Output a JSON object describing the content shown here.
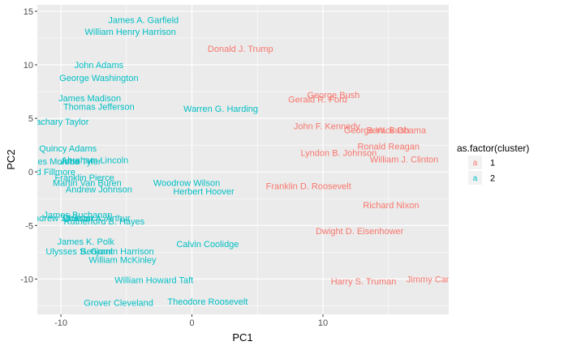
{
  "chart_data": {
    "type": "scatter",
    "title": "",
    "xlabel": "PC1",
    "ylabel": "PC2",
    "xlim": [
      -11.8,
      19.6
    ],
    "ylim": [
      -13.3,
      15.6
    ],
    "xticks": [
      -10,
      0,
      10
    ],
    "yticks": [
      -10,
      -5,
      0,
      5,
      10,
      15
    ],
    "tick_labels_x": [
      "-10",
      "0",
      "10"
    ],
    "tick_labels_y": [
      "-10",
      "-5",
      "0",
      "5",
      "10",
      "15"
    ],
    "grid": true,
    "legend": {
      "title": "as.factor(cluster)",
      "placement": "right",
      "entries": [
        {
          "glyph": "a",
          "label": "1",
          "color": "#F8766D"
        },
        {
          "glyph": "a",
          "label": "2",
          "color": "#00BFC4"
        }
      ]
    },
    "colors": {
      "cluster1": "#F8766D",
      "cluster2": "#00BFC4",
      "panel": "#EBEBEB",
      "grid": "#FFFFFF"
    },
    "series": [
      {
        "name": "1",
        "points": [
          {
            "label": "Donald J. Trump",
            "x": 3.7,
            "y": 11.5
          },
          {
            "label": "George Bush",
            "x": 10.8,
            "y": 7.2
          },
          {
            "label": "Gerald R. Ford",
            "x": 9.6,
            "y": 6.8
          },
          {
            "label": "John F. Kennedy",
            "x": 10.3,
            "y": 4.3
          },
          {
            "label": "George W. Bush",
            "x": 14.1,
            "y": 3.9
          },
          {
            "label": "Barack Obama",
            "x": 15.6,
            "y": 3.9
          },
          {
            "label": "Ronald Reagan",
            "x": 15.0,
            "y": 2.4
          },
          {
            "label": "Lyndon B. Johnson",
            "x": 11.2,
            "y": 1.8
          },
          {
            "label": "William J. Clinton",
            "x": 16.2,
            "y": 1.2
          },
          {
            "label": "Franklin D. Roosevelt",
            "x": 8.9,
            "y": -1.3
          },
          {
            "label": "Richard Nixon",
            "x": 15.2,
            "y": -3.1
          },
          {
            "label": "Dwight D. Eisenhower",
            "x": 12.8,
            "y": -5.5
          },
          {
            "label": "Harry S. Truman",
            "x": 13.1,
            "y": -10.2
          },
          {
            "label": "Jimmy Carter",
            "x": 18.4,
            "y": -10.0
          }
        ]
      },
      {
        "name": "2",
        "points": [
          {
            "label": "James A. Garfield",
            "x": -3.7,
            "y": 14.2
          },
          {
            "label": "William Henry Harrison",
            "x": -4.7,
            "y": 13.1
          },
          {
            "label": "John Adams",
            "x": -7.1,
            "y": 10.0
          },
          {
            "label": "George Washington",
            "x": -7.1,
            "y": 8.8
          },
          {
            "label": "James Madison",
            "x": -7.8,
            "y": 6.9
          },
          {
            "label": "Thomas Jefferson",
            "x": -7.1,
            "y": 6.1
          },
          {
            "label": "Warren G. Harding",
            "x": 2.2,
            "y": 5.9
          },
          {
            "label": "Zachary Taylor",
            "x": -10.1,
            "y": 4.7
          },
          {
            "label": "John Quincy Adams",
            "x": -10.3,
            "y": 2.2
          },
          {
            "label": "Abraham Lincoln",
            "x": -7.4,
            "y": 1.1
          },
          {
            "label": "James Monroe",
            "x": -10.8,
            "y": 1.0
          },
          {
            "label": "John Tyler",
            "x": -8.5,
            "y": 1.0
          },
          {
            "label": "Millard Fillmore",
            "x": -11.2,
            "y": 0.0
          },
          {
            "label": "Franklin Pierce",
            "x": -8.2,
            "y": -0.5
          },
          {
            "label": "Martin Van Buren",
            "x": -8.0,
            "y": -1.0
          },
          {
            "label": "Woodrow Wilson",
            "x": -0.4,
            "y": -1.0
          },
          {
            "label": "Andrew Johnson",
            "x": -7.1,
            "y": -1.6
          },
          {
            "label": "Herbert Hoover",
            "x": 0.9,
            "y": -1.8
          },
          {
            "label": "James Buchanan",
            "x": -8.7,
            "y": -4.0
          },
          {
            "label": "Andrew Jackson",
            "x": -10.0,
            "y": -4.3
          },
          {
            "label": "Chester A. Arthur",
            "x": -7.3,
            "y": -4.3
          },
          {
            "label": "Rutherford B. Hayes",
            "x": -6.7,
            "y": -4.6
          },
          {
            "label": "James K. Polk",
            "x": -8.1,
            "y": -6.5
          },
          {
            "label": "Calvin Coolidge",
            "x": 1.2,
            "y": -6.7
          },
          {
            "label": "Ulysses S. Grant",
            "x": -8.6,
            "y": -7.4
          },
          {
            "label": "Benjamin Harrison",
            "x": -5.7,
            "y": -7.4
          },
          {
            "label": "William McKinley",
            "x": -5.3,
            "y": -8.2
          },
          {
            "label": "William Howard Taft",
            "x": -2.9,
            "y": -10.1
          },
          {
            "label": "Grover Cleveland",
            "x": -5.6,
            "y": -12.2
          },
          {
            "label": "Theodore Roosevelt",
            "x": 1.2,
            "y": -12.1
          }
        ]
      }
    ]
  }
}
